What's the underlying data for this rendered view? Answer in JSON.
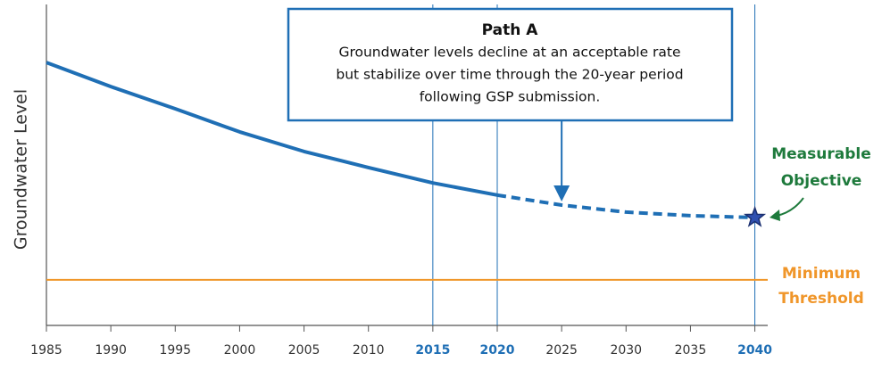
{
  "chart_data": {
    "type": "line",
    "y_label": "Groundwater Level",
    "x": [
      1985,
      1990,
      1995,
      2000,
      2005,
      2010,
      2015,
      2020,
      2025,
      2030,
      2035,
      2040
    ],
    "xlim": [
      1985,
      2041
    ],
    "xticks": [
      1985,
      1990,
      1995,
      2000,
      2005,
      2010,
      2015,
      2020,
      2025,
      2030,
      2035,
      2040
    ],
    "ylim": [
      0,
      100
    ],
    "vlines": [
      2015,
      2020,
      2040
    ],
    "highlight_color": "#1f6fb5",
    "series": [
      {
        "color": "#1f6fb5",
        "dash": false,
        "values": [
          81.9,
          74.4,
          67.5,
          60.3,
          54.2,
          49.2,
          44.4,
          40.6,
          null,
          null,
          null,
          null
        ]
      },
      {
        "color": "#1f6fb5",
        "dash": true,
        "values": [
          null,
          null,
          null,
          null,
          null,
          null,
          null,
          40.6,
          37.5,
          35.3,
          34.2,
          33.6
        ]
      }
    ],
    "threshold": {
      "value": 14.2,
      "label": [
        "Minimum",
        "Threshold"
      ],
      "color": "#f0962a"
    },
    "objective": {
      "x": 2040,
      "value": 33.6,
      "label": [
        "Measurable",
        "Objective"
      ],
      "color": "#1e7a3c"
    },
    "annotation": {
      "title": "Path A",
      "lines": [
        "Groundwater levels decline at an acceptable rate",
        "but stabilize over time through the 20-year period",
        "following GSP submission."
      ],
      "x": 2025
    }
  }
}
